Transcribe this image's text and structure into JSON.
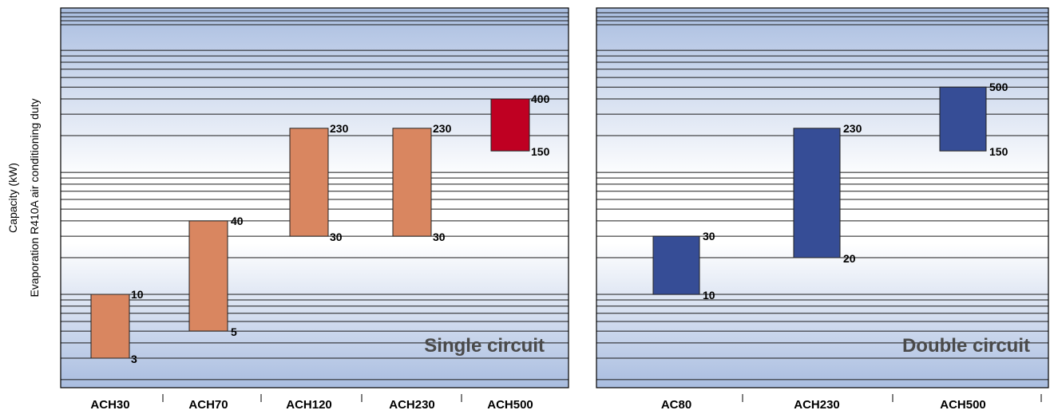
{
  "y_axis_label_line1": "Capacity (kW)",
  "y_axis_label_line2": "Evaporation R410A air conditioning duty",
  "chart_data": [
    {
      "type": "bar",
      "subtype": "floating-range",
      "panel_label": "Single circuit",
      "scale": "log",
      "ylim": [
        2,
        600
      ],
      "grid": true,
      "categories": [
        "ACH30",
        "ACH70",
        "ACH120",
        "ACH230",
        "ACH500"
      ],
      "ranges": [
        [
          3,
          10
        ],
        [
          5,
          40
        ],
        [
          30,
          230
        ],
        [
          30,
          230
        ],
        [
          150,
          400
        ]
      ],
      "colors": [
        "#d98660",
        "#d98660",
        "#d98660",
        "#d98660",
        "#bf0022"
      ]
    },
    {
      "type": "bar",
      "subtype": "floating-range",
      "panel_label": "Double circuit",
      "scale": "log",
      "ylim": [
        2,
        600
      ],
      "grid": true,
      "categories": [
        "AC80",
        "ACH230",
        "ACH500"
      ],
      "ranges": [
        [
          10,
          30
        ],
        [
          20,
          230
        ],
        [
          150,
          500
        ]
      ],
      "colors": [
        "#364d96",
        "#364d96",
        "#364d96"
      ]
    }
  ]
}
